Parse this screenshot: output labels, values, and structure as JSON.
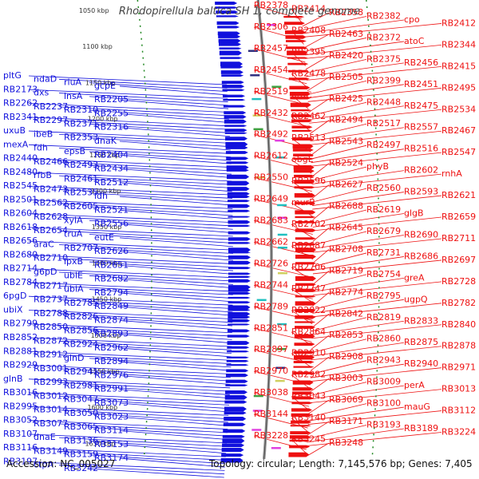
{
  "title": "Rhodopirellula baltica SH 1, complete genome",
  "footer": {
    "accession": "Accession: NC_005027",
    "topology": "Topology: circular; Length: 7,145,576 bp; Genes: 7,405"
  },
  "colors": {
    "forward": "#ee1111",
    "reverse": "#1111dd",
    "backbone": "#888888",
    "tick_dots": "#228822"
  },
  "tick_labels": [
    "1050 kbp",
    "1100 kbp",
    "1150 kbp",
    "1200 kbp",
    "1250 kbp",
    "1300 kbp",
    "1350 kbp",
    "1400 kbp",
    "1450 kbp",
    "1500 kbp",
    "1550 kbp",
    "1600 kbp",
    "1650 kbp"
  ],
  "left_labels": [
    "pltG",
    "ndaD",
    "rluA",
    "gcpE",
    "RB2173",
    "dxs",
    "lnsA",
    "RB2205",
    "RB2262",
    "RB2237",
    "RB2310",
    "RB2255",
    "RB2341",
    "RB2297",
    "RB2371",
    "RB2316",
    "uxuB",
    "ibeB",
    "RB2353",
    "dnaK",
    "mexA",
    "fdh",
    "epsB",
    "RB2404",
    "RB2440",
    "RB2466",
    "RB2493",
    "RB2434",
    "RB2480",
    "rfbB",
    "RB2461",
    "RB2512",
    "RB2545",
    "RB2473",
    "RB2535",
    "ldh",
    "RB2501",
    "RB2562",
    "RB2605",
    "RB2521",
    "RB2604",
    "RB2628",
    "xylA",
    "RB2556",
    "RB2618",
    "RB2654",
    "truA",
    "eutE",
    "RB2656",
    "araC",
    "RB2707",
    "RB2626",
    "RB2680",
    "RB2710",
    "lpxB",
    "RB2651",
    "RB2714",
    "g6pD",
    "ubiE",
    "RB2682",
    "RB2784",
    "RB2717",
    "ubiA",
    "RB2794",
    "6pgD",
    "RB2737",
    "RB2785",
    "RB2849",
    "ubiX",
    "RB2788",
    "RB2826",
    "RB2874",
    "RB2799",
    "RB2850",
    "RB2856",
    "RB2893",
    "RB2852",
    "RB2872",
    "RB2924",
    "RB2962",
    "RB2881",
    "RB2912",
    "glnD",
    "RB2894",
    "RB2929",
    "RB3001",
    "RB2941",
    "RB2976",
    "glnB",
    "RB2993",
    "RB2981",
    "RB2991",
    "RB3016",
    "RB3012",
    "RB3047",
    "RB3073",
    "RB2995",
    "RB3014",
    "RB3050",
    "RB3023",
    "RB3052",
    "RB3077",
    "RB3065",
    "RB3114",
    "RB3107",
    "dnaE",
    "RB3136",
    "RB3153",
    "RB3116",
    "RB3149",
    "RB3159",
    "RB3174",
    "RB3197",
    "ctpA",
    "RB3242"
  ],
  "right_labels": [
    "RB2378",
    "RB2414",
    "RB2358",
    "RB2382",
    "cpo",
    "RB2412",
    "RB2306",
    "RB2408",
    "RB2463",
    "RB2372",
    "atoC",
    "RB2344",
    "RB2457",
    "RB2395",
    "RB2420",
    "RB2375",
    "RB2456",
    "RB2415",
    "RB2454",
    "RB2478",
    "RB2505",
    "RB2399",
    "RB2451",
    "RB2495",
    "RB2519",
    "argC",
    "RB2425",
    "RB2448",
    "RB2475",
    "RB2534",
    "RB2432",
    "RB2462",
    "RB2494",
    "RB2517",
    "RB2557",
    "RB2467",
    "RB2492",
    "RB2513",
    "RB2543",
    "RB2497",
    "RB2516",
    "RB2547",
    "RB2612",
    "obgE",
    "RB2524",
    "phyB",
    "RB2602",
    "rnhA",
    "RB2550",
    "RB2596",
    "RB2627",
    "RB2560",
    "RB2593",
    "RB2621",
    "RB2649",
    "murB",
    "RB2688",
    "RB2619",
    "glgB",
    "RB2659",
    "RB2683",
    "RB2702",
    "RB2645",
    "RB2679",
    "RB2690",
    "RB2711",
    "RB2662",
    "RB2687",
    "RB2708",
    "RB2731",
    "RB2686",
    "RB2697",
    "RB2726",
    "RB2706",
    "RB2719",
    "RB2754",
    "greA",
    "RB2728",
    "RB2744",
    "RB2747",
    "RB2774",
    "RB2795",
    "ugpQ",
    "RB2782",
    "RB2789",
    "RB2822",
    "RB2842",
    "RB2819",
    "RB2833",
    "RB2840",
    "RB2851",
    "RB2864",
    "RB2853",
    "RB2860",
    "RB2875",
    "RB2878",
    "RB2897",
    "RB2910",
    "RB2908",
    "RB2943",
    "RB2940",
    "RB2971",
    "RB2970",
    "RB2982",
    "RB3003",
    "RB3009",
    "perA",
    "RB3013",
    "RB3038",
    "RB3043",
    "RB3069",
    "RB3100",
    "mauG",
    "RB3112",
    "RB3144",
    "RB3140",
    "RB3171",
    "RB3193",
    "RB3189",
    "RB3224",
    "RB3228",
    "RB3245",
    "RB3248"
  ]
}
